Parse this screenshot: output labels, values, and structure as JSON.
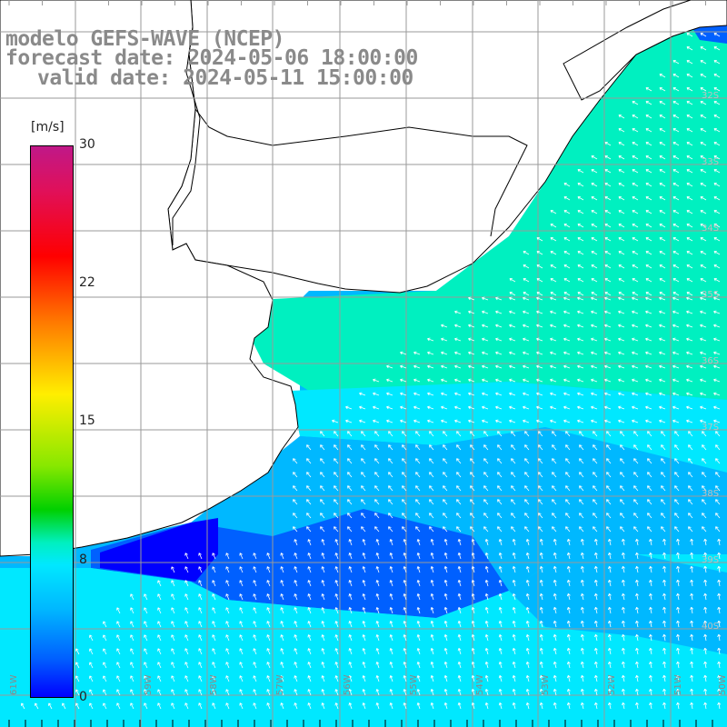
{
  "header": {
    "model": "modelo GEFS-WAVE (NCEP)",
    "forecast_date": "forecast date: 2024-05-06 18:00:00",
    "valid_date": "valid date: 2024-05-11 15:00:00"
  },
  "colorbar": {
    "units": "[m/s]",
    "ticks": [
      {
        "label": "30",
        "value": 30
      },
      {
        "label": "22",
        "value": 22
      },
      {
        "label": "15",
        "value": 15
      },
      {
        "label": "8",
        "value": 8
      },
      {
        "label": "0",
        "value": 0
      }
    ],
    "colors": [
      "#0000ff",
      "#0060ff",
      "#00b8ff",
      "#00e8ff",
      "#00f0c0",
      "#00d000",
      "#88e800",
      "#ffee00",
      "#ff7a00",
      "#ff0000",
      "#e0105a",
      "#c01888"
    ]
  },
  "axes": {
    "lon_labels": [
      "61W",
      "59W",
      "58W",
      "57W",
      "56W",
      "55W",
      "54W",
      "53W",
      "52W",
      "51W",
      "50W"
    ],
    "lat_labels": [
      "32S",
      "33S",
      "34S",
      "35S",
      "36S",
      "37S",
      "38S",
      "39S",
      "40S"
    ]
  },
  "map_colors": {
    "land": "#ffffff",
    "coastline": "#000000",
    "grid": "#9a9a9a",
    "arrows": "#ffffff"
  }
}
